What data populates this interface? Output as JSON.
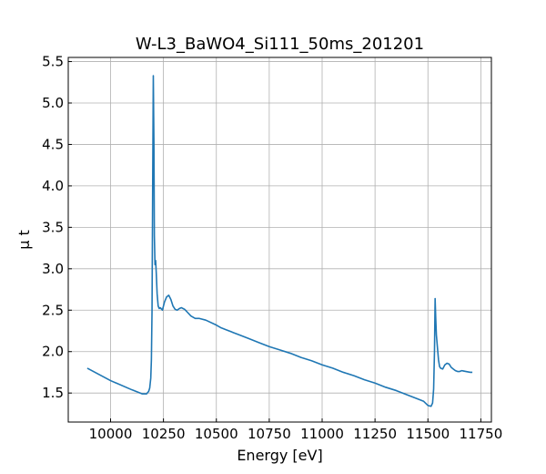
{
  "chart_data": {
    "type": "line",
    "title": "W-L3_BaWO4_Si111_50ms_201201",
    "xlabel": "Energy [eV]",
    "ylabel": "μ t",
    "xlim": [
      9800,
      11800
    ],
    "ylim": [
      1.15,
      5.55
    ],
    "xticks": [
      10000,
      10250,
      10500,
      10750,
      11000,
      11250,
      11500,
      11750
    ],
    "yticks": [
      1.5,
      2.0,
      2.5,
      3.0,
      3.5,
      4.0,
      4.5,
      5.0,
      5.5
    ],
    "xtick_labels": [
      "10000",
      "10250",
      "10500",
      "10750",
      "11000",
      "11250",
      "11500",
      "11750"
    ],
    "ytick_labels": [
      "1.5",
      "2.0",
      "2.5",
      "3.0",
      "3.5",
      "4.0",
      "4.5",
      "5.0",
      "5.5"
    ],
    "grid": true,
    "series": [
      {
        "color": "#1f77b4",
        "x": [
          9890,
          10000,
          10100,
          10150,
          10170,
          10180,
          10185,
          10190,
          10193,
          10196,
          10199,
          10202,
          10205,
          10207,
          10210,
          10213,
          10216,
          10220,
          10225,
          10230,
          10235,
          10245,
          10255,
          10265,
          10275,
          10285,
          10295,
          10305,
          10315,
          10325,
          10335,
          10350,
          10365,
          10380,
          10400,
          10420,
          10450,
          10500,
          10520,
          10550,
          10580,
          10600,
          10650,
          10700,
          10750,
          10800,
          10850,
          10900,
          10950,
          11000,
          11050,
          11100,
          11150,
          11200,
          11250,
          11300,
          11350,
          11400,
          11450,
          11480,
          11500,
          11515,
          11522,
          11527,
          11531,
          11534,
          11537,
          11540,
          11545,
          11550,
          11555,
          11560,
          11570,
          11580,
          11590,
          11600,
          11610,
          11620,
          11630,
          11640,
          11650,
          11660,
          11680,
          11700,
          11710
        ],
        "y": [
          1.8,
          1.65,
          1.54,
          1.49,
          1.49,
          1.52,
          1.56,
          1.68,
          1.9,
          2.5,
          4.0,
          5.33,
          4.5,
          3.4,
          3.05,
          3.1,
          2.95,
          2.7,
          2.55,
          2.52,
          2.53,
          2.5,
          2.6,
          2.66,
          2.68,
          2.63,
          2.55,
          2.51,
          2.5,
          2.52,
          2.53,
          2.51,
          2.47,
          2.43,
          2.4,
          2.4,
          2.38,
          2.32,
          2.29,
          2.26,
          2.23,
          2.21,
          2.16,
          2.11,
          2.06,
          2.02,
          1.98,
          1.93,
          1.89,
          1.84,
          1.8,
          1.75,
          1.71,
          1.66,
          1.62,
          1.57,
          1.53,
          1.48,
          1.43,
          1.4,
          1.35,
          1.34,
          1.38,
          1.55,
          2.0,
          2.64,
          2.4,
          2.2,
          2.05,
          1.9,
          1.82,
          1.8,
          1.79,
          1.84,
          1.86,
          1.85,
          1.81,
          1.79,
          1.77,
          1.76,
          1.76,
          1.77,
          1.76,
          1.75,
          1.75
        ]
      }
    ]
  }
}
